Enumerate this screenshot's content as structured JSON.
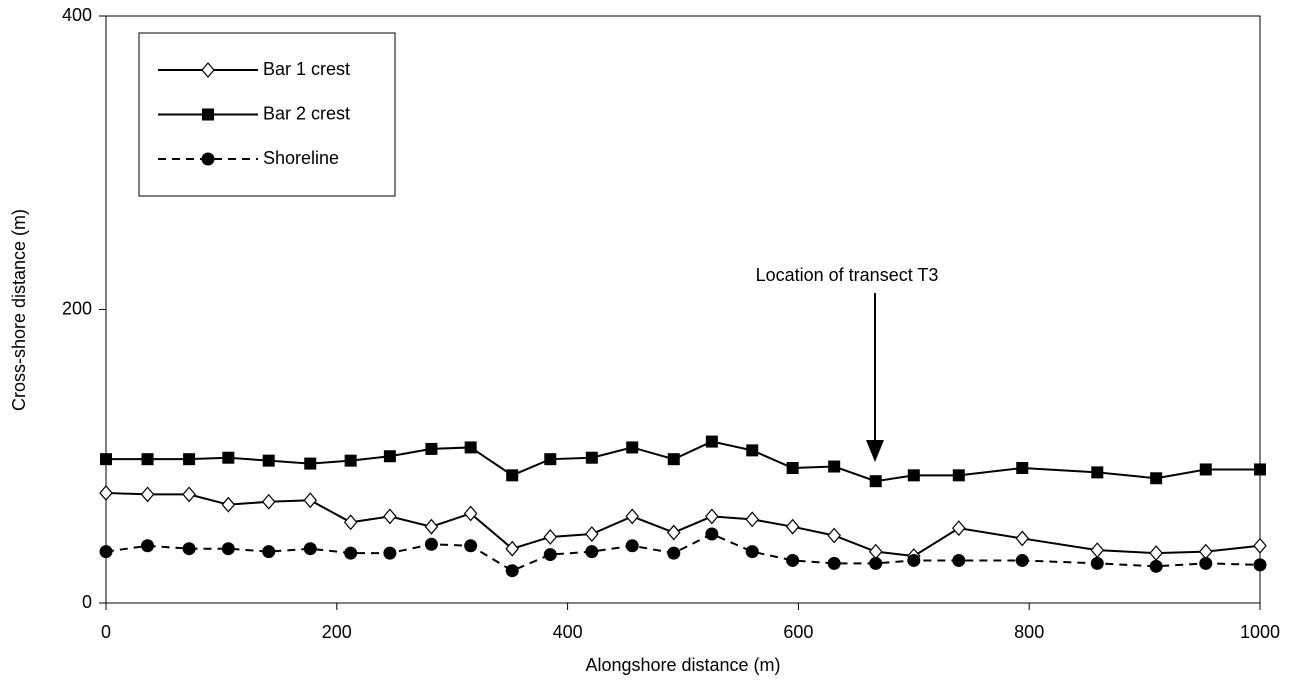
{
  "chart_data": {
    "type": "line",
    "xlabel": "Alongshore distance (m)",
    "ylabel": "Cross-shore distance (m)",
    "annotation": "Location of transect T3",
    "x": [
      0,
      36,
      72,
      106,
      141,
      177,
      212,
      246,
      282,
      316,
      352,
      385,
      421,
      456,
      492,
      525,
      560,
      595,
      631,
      667,
      700,
      739,
      794,
      859,
      910,
      953,
      1000
    ],
    "series": [
      {
        "name": "Bar 1 crest",
        "color": "#000000",
        "marker": "diamond-open",
        "dash": false,
        "values": [
          75,
          74,
          74,
          67,
          69,
          70,
          55,
          59,
          52,
          61,
          37,
          45,
          47,
          59,
          48,
          59,
          57,
          52,
          46,
          35,
          32,
          51,
          44,
          36,
          34,
          35,
          39
        ]
      },
      {
        "name": "Bar 2 crest",
        "color": "#000000",
        "marker": "square",
        "dash": false,
        "values": [
          98,
          98,
          98,
          99,
          97,
          95,
          97,
          100,
          105,
          106,
          87,
          98,
          99,
          106,
          98,
          110,
          104,
          92,
          93,
          83,
          87,
          87,
          92,
          89,
          85,
          91,
          91
        ]
      },
      {
        "name": "Shoreline",
        "color": "#000000",
        "marker": "circle",
        "dash": true,
        "values": [
          35,
          39,
          37,
          37,
          35,
          37,
          34,
          34,
          40,
          39,
          22,
          33,
          35,
          39,
          34,
          47,
          35,
          29,
          27,
          27,
          29,
          29,
          29,
          27,
          25,
          27,
          26
        ]
      }
    ],
    "xlim": [
      0,
      1000
    ],
    "xticks": [
      0,
      200,
      400,
      600,
      800,
      1000
    ],
    "ylim": [
      0,
      400
    ],
    "yticks": [
      0,
      200,
      400
    ]
  }
}
